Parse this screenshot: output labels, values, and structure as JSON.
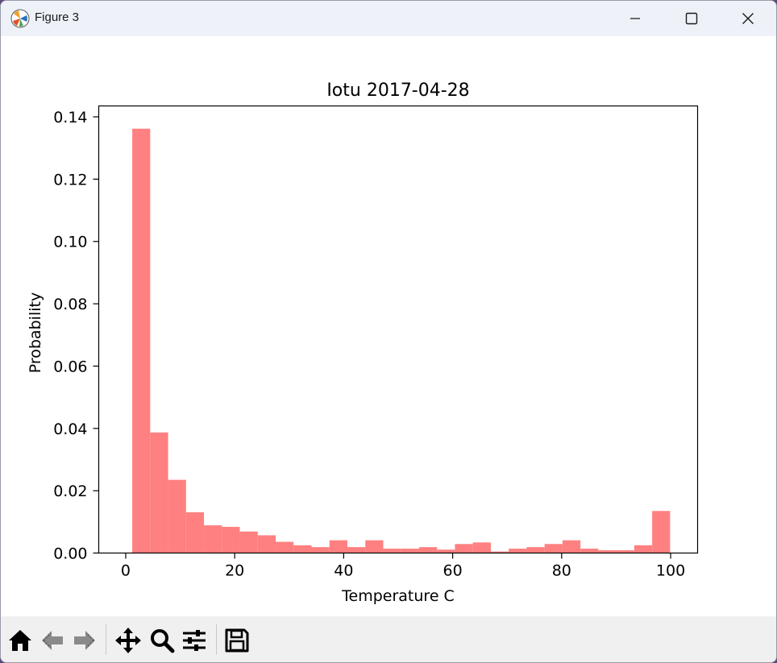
{
  "window": {
    "title": "Figure 3",
    "app_icon": "matplotlib-logo",
    "controls": [
      "minimize-icon",
      "maximize-icon",
      "close-icon"
    ]
  },
  "toolbar": {
    "buttons": [
      "home-icon",
      "back-icon",
      "forward-icon",
      "pan-icon",
      "zoom-icon",
      "configure-subplots-icon",
      "save-icon"
    ]
  },
  "chart_data": {
    "type": "bar",
    "title": "Iotu 2017-04-28",
    "xlabel": "Temperature C",
    "ylabel": "Probability",
    "color": "#ff8080",
    "xlim": [
      -4.95,
      104.95
    ],
    "ylim": [
      0,
      0.1435
    ],
    "xticks": [
      0,
      20,
      40,
      60,
      80,
      100
    ],
    "xtick_labels": [
      "0",
      "20",
      "40",
      "60",
      "80",
      "100"
    ],
    "yticks": [
      0.0,
      0.02,
      0.04,
      0.06,
      0.08,
      0.1,
      0.12,
      0.14
    ],
    "ytick_labels": [
      "0.00",
      "0.02",
      "0.04",
      "0.06",
      "0.08",
      "0.10",
      "0.12",
      "0.14"
    ],
    "bin_edges": [
      1.2,
      4.49,
      7.78,
      11.07,
      14.36,
      17.65,
      20.94,
      24.23,
      27.52,
      30.81,
      34.1,
      37.39,
      40.68,
      43.97,
      47.26,
      50.55,
      53.84,
      57.13,
      60.42,
      63.71,
      67.0,
      70.29,
      73.58,
      76.87,
      80.16,
      83.45,
      86.74,
      90.03,
      93.32,
      96.61,
      99.9
    ],
    "values": [
      0.1362,
      0.0387,
      0.0235,
      0.0131,
      0.0089,
      0.0084,
      0.0069,
      0.0057,
      0.0036,
      0.0025,
      0.0019,
      0.0041,
      0.0019,
      0.0041,
      0.0014,
      0.0014,
      0.0019,
      0.0011,
      0.0029,
      0.0034,
      0.0005,
      0.0014,
      0.0019,
      0.0029,
      0.0041,
      0.0014,
      0.0009,
      0.0009,
      0.0025,
      0.0135
    ]
  }
}
